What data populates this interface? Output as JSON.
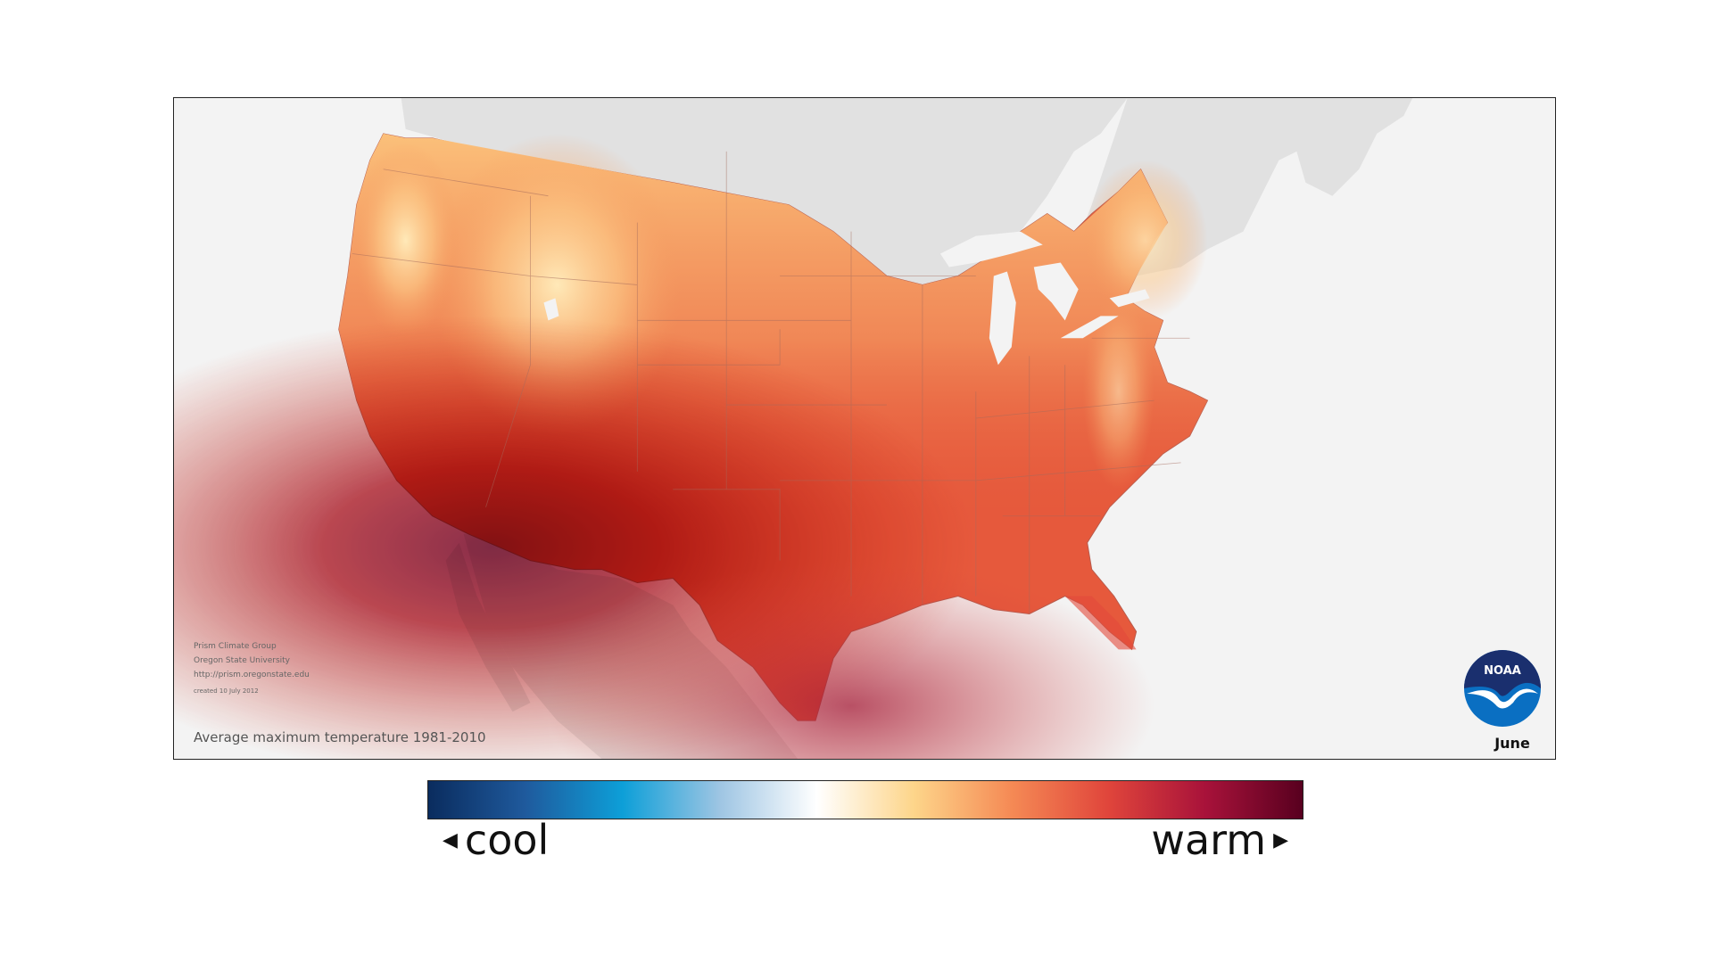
{
  "map": {
    "title": "Average maximum temperature 1981-2010",
    "month": "June",
    "credits": [
      "Prism Climate Group",
      "Oregon State University",
      "http://prism.oregonstate.edu"
    ],
    "created": "created 10 July 2012",
    "logo_text": "NOAA",
    "land_color": "#e1e1e1",
    "ocean_color": "#f3f3f3"
  },
  "legend": {
    "low_label": "cool",
    "high_label": "warm",
    "low_arrow": "◀",
    "high_arrow": "▶",
    "colors": [
      "#0a2c5e",
      "#1f5a9d",
      "#0d9fd8",
      "#9ec5e3",
      "#ffffff",
      "#fdd58a",
      "#f58a55",
      "#e0453b",
      "#a8123a",
      "#58001f"
    ]
  }
}
